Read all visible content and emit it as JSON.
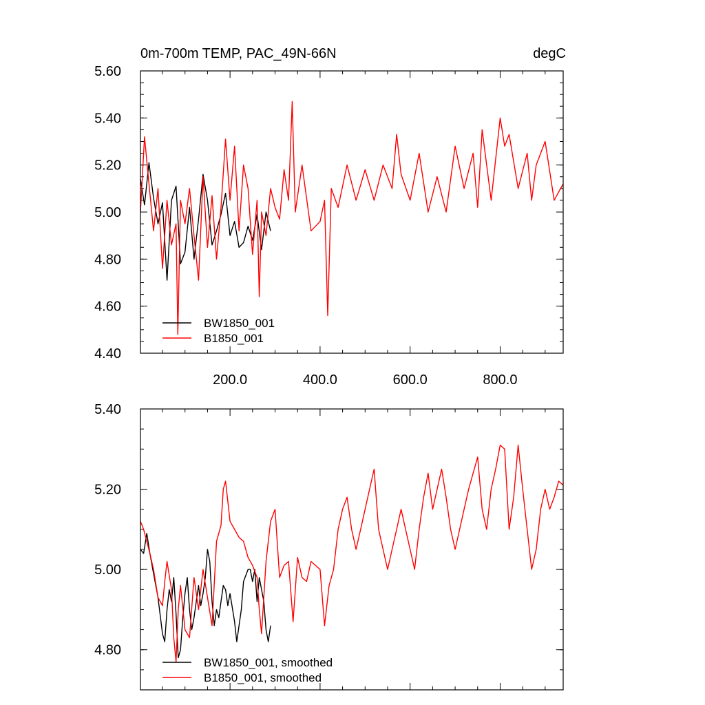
{
  "colors": {
    "black_series": "#000000",
    "red_series": "#ff0000"
  },
  "chart_data": [
    {
      "type": "line",
      "title_left": "0m-700m TEMP, PAC_49N-66N",
      "title_right": "degC",
      "xlim": [
        1,
        940
      ],
      "ylim": [
        4.4,
        5.6
      ],
      "x_ticks": [
        200,
        400,
        600,
        800
      ],
      "x_tick_labels": [
        "200.0",
        "400.0",
        "600.0",
        "800.0"
      ],
      "y_ticks": [
        4.4,
        4.6,
        4.8,
        5.0,
        5.2,
        5.4,
        5.6
      ],
      "y_tick_labels": [
        "4.40",
        "4.60",
        "4.80",
        "5.00",
        "5.20",
        "5.40",
        "5.60"
      ],
      "legend_position": "bottom-left",
      "series": [
        {
          "name": "BW1850_001",
          "color": "#000000",
          "x": [
            1,
            10,
            20,
            30,
            40,
            50,
            60,
            70,
            80,
            90,
            100,
            110,
            120,
            130,
            140,
            150,
            160,
            170,
            180,
            190,
            200,
            210,
            220,
            230,
            240,
            250,
            260,
            270,
            280,
            290
          ],
          "values": [
            5.14,
            5.03,
            5.21,
            5.06,
            4.95,
            5.04,
            4.71,
            5.05,
            5.11,
            4.78,
            4.83,
            5.02,
            4.8,
            4.97,
            5.16,
            5.05,
            4.86,
            4.92,
            4.99,
            5.08,
            4.9,
            4.96,
            4.85,
            4.87,
            4.94,
            4.88,
            4.99,
            4.84,
            5.0,
            4.92
          ]
        },
        {
          "name": "B1850_001",
          "color": "#ff0000",
          "x": [
            1,
            10,
            20,
            30,
            40,
            50,
            60,
            70,
            80,
            84,
            90,
            100,
            110,
            120,
            130,
            140,
            150,
            160,
            170,
            180,
            190,
            200,
            210,
            220,
            230,
            240,
            250,
            260,
            265,
            270,
            280,
            290,
            300,
            310,
            320,
            330,
            338,
            345,
            360,
            380,
            400,
            410,
            417,
            425,
            440,
            460,
            480,
            500,
            520,
            540,
            560,
            570,
            580,
            600,
            620,
            640,
            660,
            680,
            700,
            720,
            740,
            750,
            760,
            780,
            800,
            810,
            820,
            840,
            860,
            870,
            880,
            900,
            920,
            940
          ],
          "values": [
            5.0,
            5.32,
            5.12,
            4.92,
            5.1,
            4.76,
            5.05,
            4.86,
            4.95,
            4.48,
            5.05,
            4.95,
            5.1,
            4.9,
            4.71,
            5.15,
            4.85,
            5.07,
            4.8,
            5.02,
            5.31,
            5.05,
            5.28,
            4.92,
            5.2,
            5.1,
            4.82,
            5.05,
            4.64,
            5.0,
            4.9,
            5.1,
            5.02,
            4.97,
            5.18,
            5.05,
            5.47,
            5.0,
            5.2,
            4.92,
            4.96,
            5.05,
            4.56,
            5.1,
            5.02,
            5.2,
            5.05,
            5.18,
            5.05,
            5.2,
            5.1,
            5.33,
            5.16,
            5.05,
            5.25,
            5.0,
            5.15,
            5.0,
            5.28,
            5.1,
            5.25,
            5.02,
            5.35,
            5.05,
            5.4,
            5.28,
            5.33,
            5.1,
            5.25,
            5.05,
            5.2,
            5.3,
            5.05,
            5.12
          ]
        }
      ]
    },
    {
      "type": "line",
      "xlim": [
        1,
        940
      ],
      "ylim": [
        4.7,
        5.4
      ],
      "y_ticks": [
        4.8,
        5.0,
        5.2,
        5.4
      ],
      "y_tick_labels": [
        "4.80",
        "5.00",
        "5.20",
        "5.40"
      ],
      "legend_position": "bottom-left",
      "series": [
        {
          "name": "BW1850_001, smoothed",
          "color": "#000000",
          "x": [
            1,
            8,
            15,
            22,
            30,
            40,
            50,
            55,
            60,
            65,
            70,
            75,
            80,
            85,
            90,
            95,
            100,
            105,
            110,
            115,
            120,
            125,
            130,
            135,
            140,
            145,
            150,
            155,
            160,
            165,
            170,
            175,
            180,
            185,
            190,
            195,
            200,
            210,
            215,
            220,
            225,
            230,
            240,
            245,
            250,
            255,
            260,
            265,
            270,
            275,
            280,
            285,
            290
          ],
          "values": [
            5.05,
            5.04,
            5.09,
            5.04,
            4.99,
            4.93,
            4.84,
            4.82,
            4.9,
            4.95,
            4.92,
            4.98,
            4.89,
            4.78,
            4.8,
            4.88,
            4.94,
            4.98,
            4.9,
            4.85,
            4.88,
            4.92,
            4.96,
            4.91,
            4.94,
            4.98,
            5.05,
            5.02,
            4.92,
            4.86,
            4.9,
            4.88,
            4.92,
            4.96,
            4.95,
            4.91,
            4.94,
            4.87,
            4.82,
            4.86,
            4.9,
            4.97,
            5.0,
            5.0,
            4.97,
            5.0,
            4.92,
            4.98,
            4.95,
            4.92,
            4.85,
            4.82,
            4.86
          ]
        },
        {
          "name": "B1850_001, smoothed",
          "color": "#ff0000",
          "x": [
            1,
            8,
            15,
            22,
            30,
            40,
            50,
            55,
            60,
            70,
            75,
            80,
            85,
            90,
            100,
            110,
            120,
            130,
            140,
            150,
            160,
            170,
            180,
            185,
            190,
            195,
            200,
            210,
            220,
            230,
            240,
            250,
            260,
            265,
            270,
            280,
            290,
            300,
            310,
            320,
            330,
            340,
            350,
            360,
            370,
            380,
            400,
            410,
            420,
            430,
            440,
            450,
            460,
            470,
            480,
            490,
            500,
            510,
            520,
            530,
            540,
            550,
            560,
            570,
            580,
            590,
            600,
            610,
            620,
            630,
            640,
            650,
            660,
            670,
            680,
            690,
            700,
            710,
            720,
            730,
            740,
            750,
            760,
            770,
            780,
            790,
            800,
            810,
            820,
            830,
            840,
            850,
            860,
            870,
            880,
            890,
            900,
            910,
            920,
            930,
            940
          ],
          "values": [
            5.12,
            5.1,
            5.07,
            5.04,
            5.0,
            4.93,
            4.91,
            4.97,
            5.02,
            4.95,
            4.83,
            4.77,
            4.9,
            4.96,
            4.85,
            4.83,
            4.98,
            4.9,
            5.0,
            4.93,
            4.86,
            5.07,
            5.11,
            5.2,
            5.22,
            5.17,
            5.12,
            5.1,
            5.08,
            5.07,
            5.03,
            5.01,
            4.98,
            4.9,
            4.84,
            5.02,
            5.12,
            5.15,
            4.98,
            5.01,
            5.02,
            4.87,
            5.03,
            4.98,
            4.97,
            5.02,
            5.0,
            4.86,
            4.96,
            5.0,
            5.1,
            5.15,
            5.18,
            5.1,
            5.05,
            5.1,
            5.15,
            5.2,
            5.25,
            5.1,
            5.05,
            5.0,
            5.05,
            5.1,
            5.15,
            5.1,
            5.05,
            5.0,
            5.1,
            5.18,
            5.24,
            5.15,
            5.2,
            5.25,
            5.18,
            5.1,
            5.05,
            5.1,
            5.15,
            5.2,
            5.24,
            5.28,
            5.15,
            5.1,
            5.2,
            5.25,
            5.31,
            5.3,
            5.1,
            5.18,
            5.31,
            5.2,
            5.1,
            5.0,
            5.05,
            5.15,
            5.2,
            5.15,
            5.18,
            5.22,
            5.21
          ]
        }
      ]
    }
  ]
}
